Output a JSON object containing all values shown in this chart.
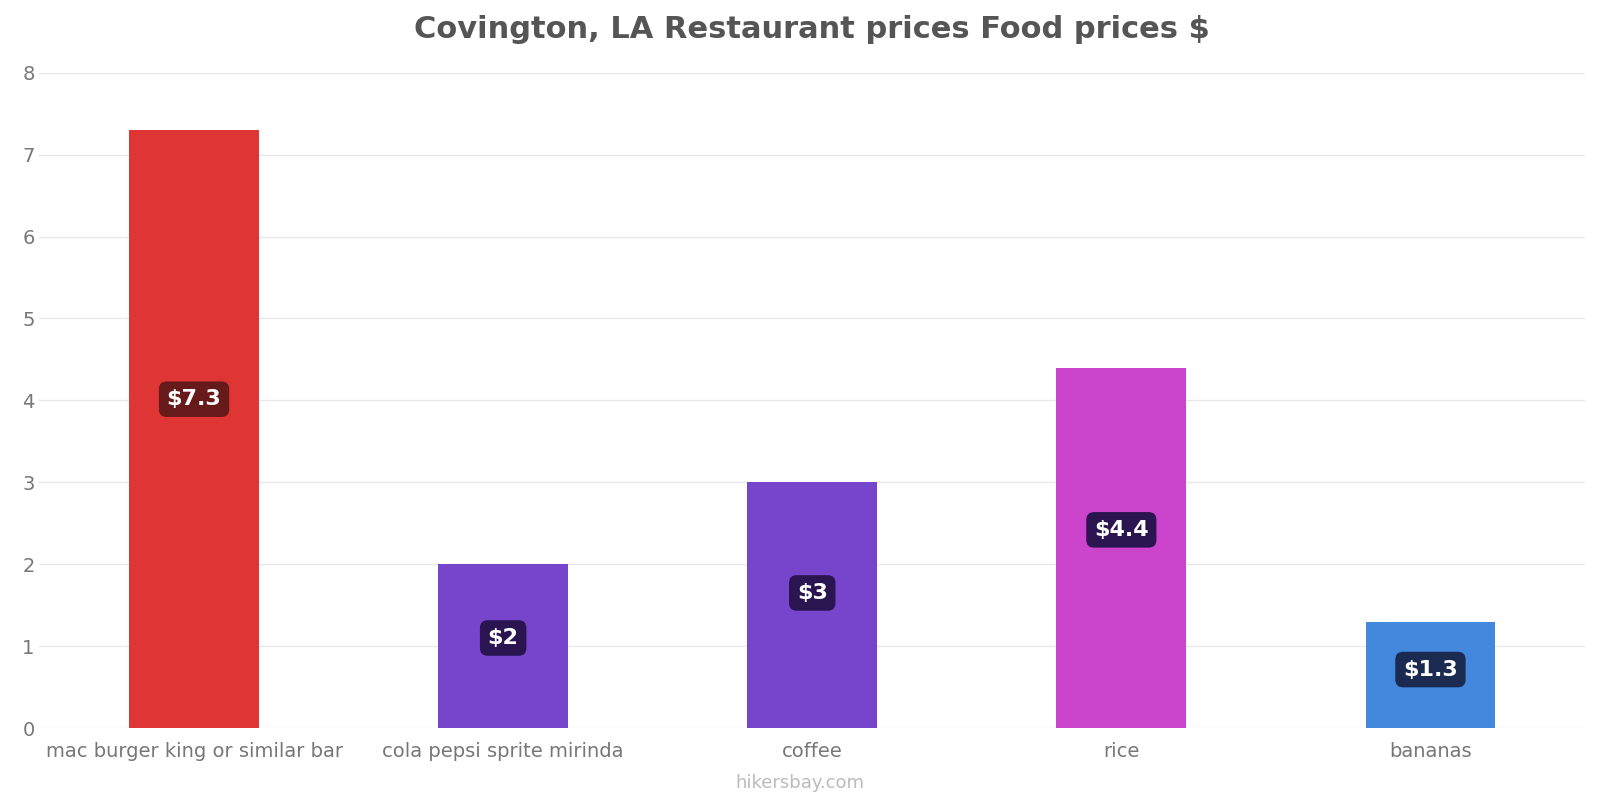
{
  "title": "Covington, LA Restaurant prices Food prices $",
  "categories": [
    "mac burger king or similar bar",
    "cola pepsi sprite mirinda",
    "coffee",
    "rice",
    "bananas"
  ],
  "values": [
    7.3,
    2.0,
    3.0,
    4.4,
    1.3
  ],
  "bar_colors": [
    "#e03535",
    "#7744cc",
    "#7744cc",
    "#cc44cc",
    "#4488dd"
  ],
  "label_texts": [
    "$7.3",
    "$2",
    "$3",
    "$4.4",
    "$1.3"
  ],
  "label_bg_colors": [
    "#661a1a",
    "#2a1550",
    "#2a1550",
    "#2a1550",
    "#1a2a50"
  ],
  "ylim": [
    0,
    8
  ],
  "yticks": [
    0,
    1,
    2,
    3,
    4,
    5,
    6,
    7,
    8
  ],
  "title_fontsize": 22,
  "tick_fontsize": 14,
  "label_fontsize": 16,
  "footer_text": "hikersbay.com",
  "background_color": "#ffffff",
  "grid_color": "#e8e8e8",
  "bar_width": 0.42
}
